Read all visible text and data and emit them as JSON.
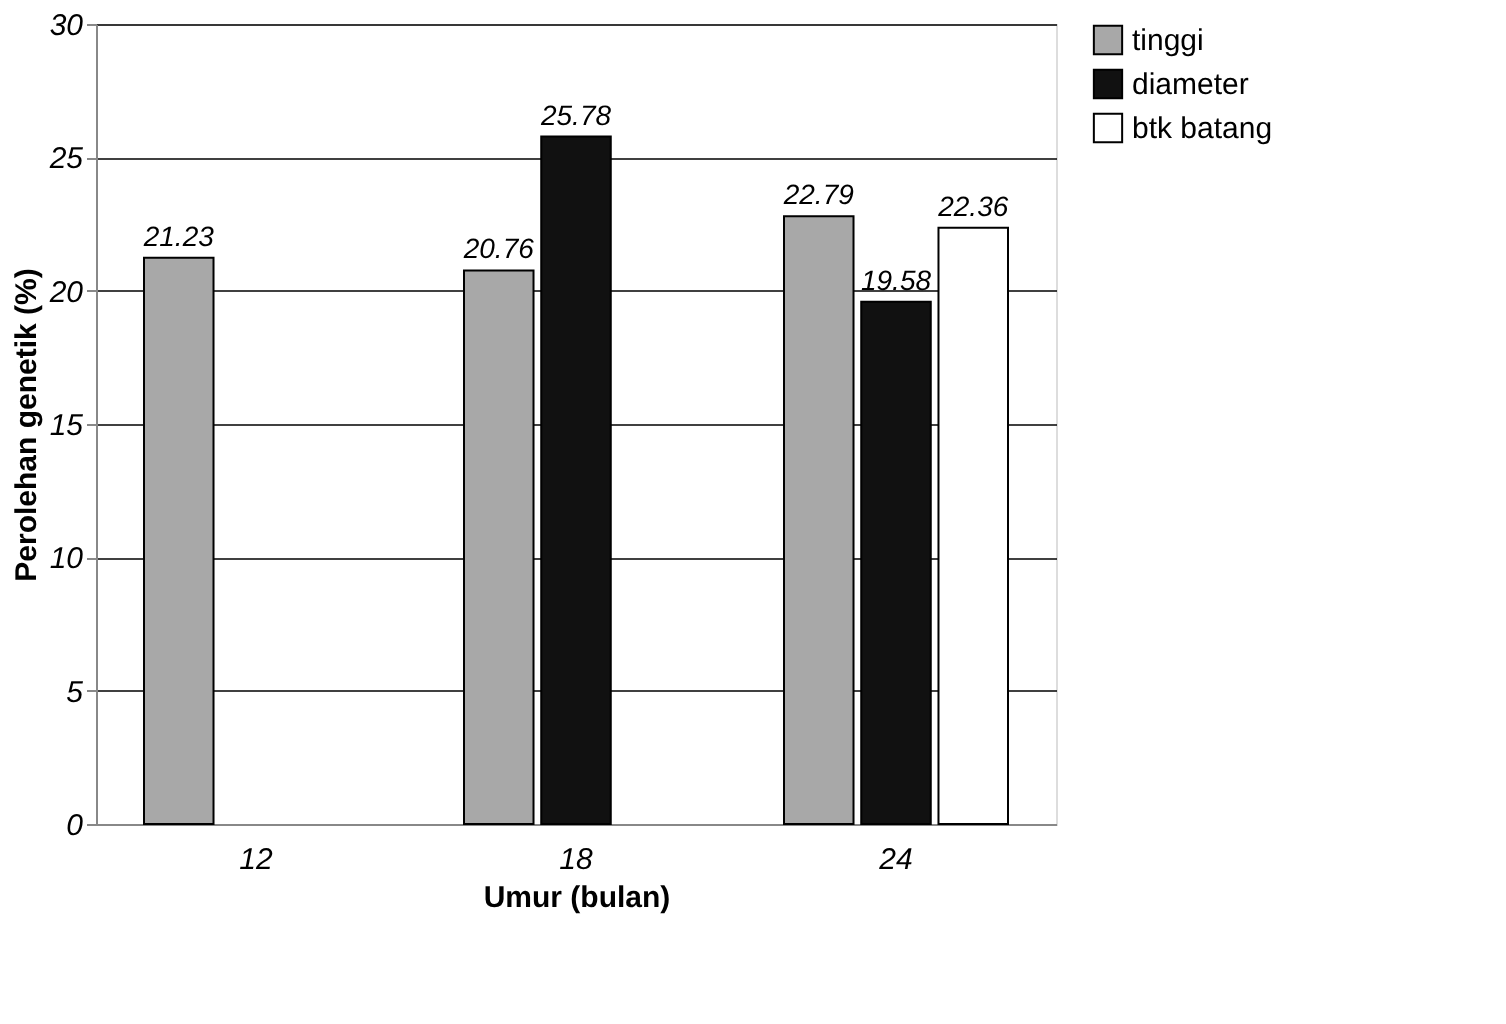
{
  "chart_data": {
    "type": "bar",
    "xlabel": "Umur (bulan)",
    "ylabel": "Perolehan genetik (%)",
    "categories": [
      "12",
      "18",
      "24"
    ],
    "series": [
      {
        "name": "tinggi",
        "color": "#a8a8a8",
        "values": [
          21.23,
          20.76,
          22.79
        ]
      },
      {
        "name": "diameter",
        "color": "#111111",
        "values": [
          null,
          25.78,
          19.58
        ]
      },
      {
        "name": "btk batang",
        "color": "#ffffff",
        "values": [
          null,
          null,
          22.36
        ]
      }
    ],
    "ylim": [
      0,
      30
    ],
    "yticks": [
      0,
      5,
      10,
      15,
      20,
      25,
      30
    ],
    "grid": "y",
    "legend": "right",
    "data_labels": true
  }
}
